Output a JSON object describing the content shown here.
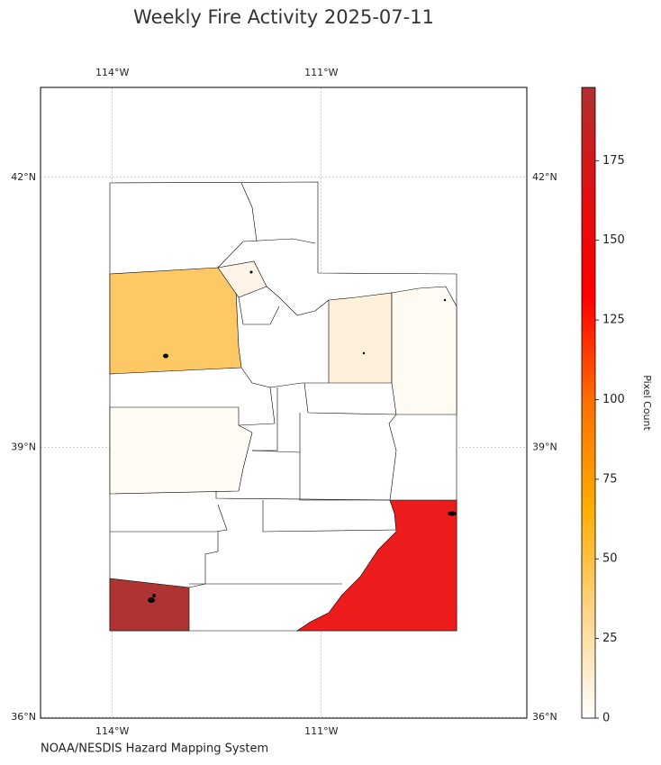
{
  "map": {
    "title": "Weekly Fire Activity 2025-07-11",
    "source": "NOAA/NESDIS Hazard Mapping System",
    "xlim": [
      -115.03,
      -108.05
    ],
    "ylim": [
      35.99,
      43.0
    ],
    "xticks": [
      {
        "value": -114,
        "label": "114°W"
      },
      {
        "value": -111,
        "label": "111°W"
      }
    ],
    "yticks": [
      {
        "value": 42,
        "label": "42°N"
      },
      {
        "value": 39,
        "label": "39°N"
      },
      {
        "value": 36,
        "label": "36°N"
      }
    ],
    "grid": true,
    "colorbar": {
      "label": "Pixel Count",
      "clim": [
        0,
        198
      ],
      "ticks": [
        0,
        25,
        50,
        75,
        100,
        125,
        150,
        175
      ],
      "colors": [
        "#ffffff",
        "#fed58a",
        "#ffad00",
        "#ff7000",
        "#ff0000",
        "#e01010",
        "#b03030"
      ]
    }
  }
}
